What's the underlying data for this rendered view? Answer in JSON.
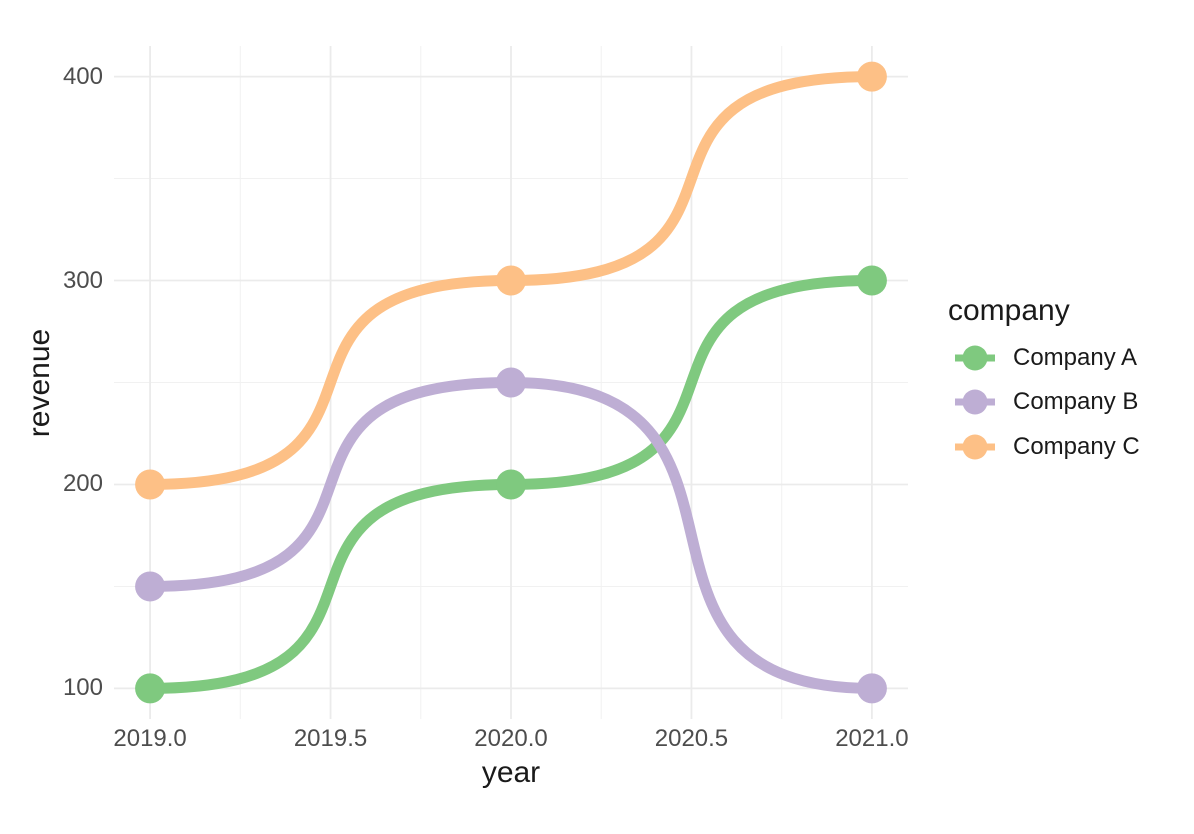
{
  "chart_data": {
    "type": "line",
    "curve": "sigmoid",
    "title": "",
    "xlabel": "year",
    "ylabel": "revenue",
    "x": [
      2019,
      2020,
      2021
    ],
    "series": [
      {
        "name": "Company A",
        "color": "#7fc97f",
        "values": [
          100,
          200,
          300
        ]
      },
      {
        "name": "Company B",
        "color": "#beaed4",
        "values": [
          150,
          250,
          100
        ]
      },
      {
        "name": "Company C",
        "color": "#fdc086",
        "values": [
          200,
          300,
          400
        ]
      }
    ],
    "xlim": [
      2018.9,
      2021.1
    ],
    "ylim": [
      85,
      415
    ],
    "x_ticks": {
      "values": [
        2019.0,
        2019.5,
        2020.0,
        2020.5,
        2021.0
      ],
      "labels": [
        "2019.0",
        "2019.5",
        "2020.0",
        "2020.5",
        "2021.0"
      ]
    },
    "y_ticks": {
      "values": [
        100,
        200,
        300,
        400
      ],
      "labels": [
        "100",
        "200",
        "300",
        "400"
      ]
    },
    "x_minor_ticks": [
      2019.25,
      2019.75,
      2020.25,
      2020.75
    ],
    "y_minor_ticks": [
      150,
      250,
      350
    ],
    "grid": "on",
    "legend": {
      "title": "company",
      "position": "right"
    },
    "line_width": 11,
    "point_radius": 15
  },
  "style": {
    "background": "#ffffff",
    "grid_major_color": "#ebebeb",
    "grid_minor_color": "#f1f1f1",
    "tick_label_color": "#4d4d4d",
    "title_color": "#1a1a1a"
  }
}
